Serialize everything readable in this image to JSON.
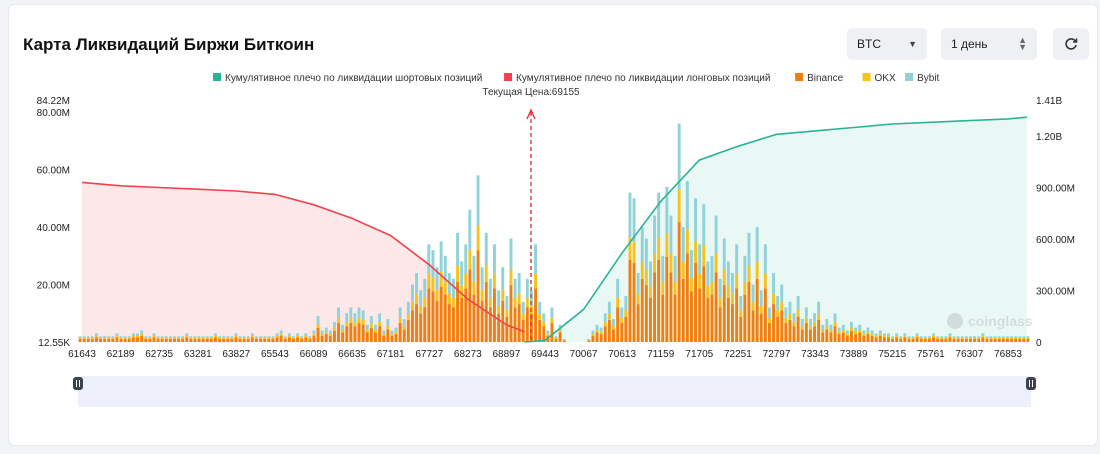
{
  "header": {
    "title": "Карта Ликвидаций Биржи Биткоин",
    "coin_select": "BTC",
    "period_select": "1 день",
    "refresh_icon": "refresh-icon"
  },
  "colors": {
    "short": "#2bb39a",
    "long": "#f0434d",
    "binance": "#f07f0f",
    "okx": "#f7c31a",
    "bybit": "#8fd3d9",
    "price_line": "#e0333d"
  },
  "chart_data": {
    "type": "bar",
    "current_price_label": "Текущая Цена:69155",
    "current_price": 69155,
    "legend": [
      {
        "name": "Кумулятивное плечо по ликвидации шортовых позиций",
        "color": "#2bb39a"
      },
      {
        "name": "Кумулятивное плечо по ликвидации лонговых позиций",
        "color": "#f0434d"
      },
      {
        "name": "Binance",
        "color": "#f07f0f"
      },
      {
        "name": "OKX",
        "color": "#f7c31a"
      },
      {
        "name": "Bybit",
        "color": "#8fd3d9"
      }
    ],
    "x_ticks": [
      "61643",
      "62189",
      "62735",
      "63281",
      "63827",
      "65543",
      "66089",
      "66635",
      "67181",
      "67727",
      "68273",
      "68897",
      "69443",
      "70067",
      "70613",
      "71159",
      "71705",
      "72251",
      "72797",
      "73343",
      "73889",
      "75215",
      "75761",
      "76307",
      "76853"
    ],
    "y_left_ticks": [
      "84.22M",
      "80.00M",
      "60.00M",
      "40.00M",
      "20.00M",
      "12.55K"
    ],
    "y_left_range": [
      0,
      84.22
    ],
    "y_right_ticks": [
      "1.41B",
      "1.20B",
      "900.00M",
      "600.00M",
      "300.00M",
      "0"
    ],
    "y_right_range": [
      0,
      1.41
    ],
    "watermark": "coinglass",
    "bar_totals": [
      2,
      2,
      2,
      2,
      3,
      2,
      2,
      2,
      2,
      3,
      2,
      2,
      2,
      3,
      3,
      4,
      2,
      2,
      3,
      2,
      2,
      2,
      2,
      2,
      2,
      2,
      3,
      2,
      2,
      2,
      2,
      2,
      2,
      3,
      2,
      2,
      2,
      2,
      3,
      2,
      2,
      2,
      3,
      2,
      2,
      2,
      2,
      2,
      3,
      4,
      2,
      3,
      2,
      3,
      2,
      3,
      2,
      4,
      9,
      4,
      5,
      4,
      7,
      12,
      6,
      10,
      12,
      10,
      12,
      11,
      6,
      9,
      6,
      10,
      4,
      8,
      4,
      5,
      12,
      8,
      14,
      20,
      24,
      18,
      22,
      34,
      32,
      26,
      35,
      30,
      24,
      22,
      38,
      28,
      34,
      46,
      30,
      58,
      26,
      38,
      22,
      34,
      18,
      26,
      16,
      36,
      22,
      24,
      14,
      22,
      18,
      34,
      14,
      10,
      4,
      12,
      2,
      6,
      1,
      0,
      0,
      0,
      0,
      0,
      1,
      4,
      6,
      5,
      10,
      14,
      8,
      22,
      12,
      16,
      52,
      50,
      24,
      40,
      36,
      28,
      44,
      52,
      30,
      54,
      44,
      30,
      76,
      40,
      56,
      32,
      50,
      34,
      48,
      28,
      30,
      44,
      22,
      36,
      28,
      24,
      34,
      16,
      30,
      38,
      20,
      40,
      18,
      34,
      12,
      24,
      16,
      20,
      12,
      14,
      10,
      16,
      8,
      12,
      8,
      10,
      14,
      6,
      8,
      6,
      10,
      5,
      6,
      4,
      7,
      5,
      6,
      4,
      5,
      4,
      3,
      4,
      3,
      3,
      2,
      3,
      2,
      3,
      2,
      2,
      3,
      2,
      2,
      2,
      3,
      2,
      2,
      2,
      3,
      2,
      2,
      2,
      2,
      2,
      2,
      2,
      3,
      2,
      2,
      2,
      2,
      2,
      2,
      2,
      2,
      2,
      2,
      2
    ],
    "series": [
      {
        "name": "Кумулятивное плечо по ликвидации лонговых позиций",
        "x": [
          61643,
          62189,
          62735,
          63281,
          63827,
          65543,
          66089,
          66635,
          67181,
          67727,
          68273,
          68897,
          69155
        ],
        "values": [
          0.93,
          0.91,
          0.9,
          0.89,
          0.88,
          0.86,
          0.8,
          0.72,
          0.62,
          0.45,
          0.25,
          0.1,
          0.06
        ]
      },
      {
        "name": "Кумулятивное плечо по ликвидации шортовых позиций",
        "x": [
          69155,
          69443,
          70067,
          70613,
          71159,
          71705,
          72251,
          72797,
          73343,
          73889,
          75215,
          75761,
          76307,
          76853,
          77000
        ],
        "values": [
          0.0,
          0.01,
          0.19,
          0.52,
          0.82,
          1.06,
          1.14,
          1.21,
          1.23,
          1.25,
          1.27,
          1.28,
          1.29,
          1.3,
          1.31
        ]
      }
    ]
  }
}
